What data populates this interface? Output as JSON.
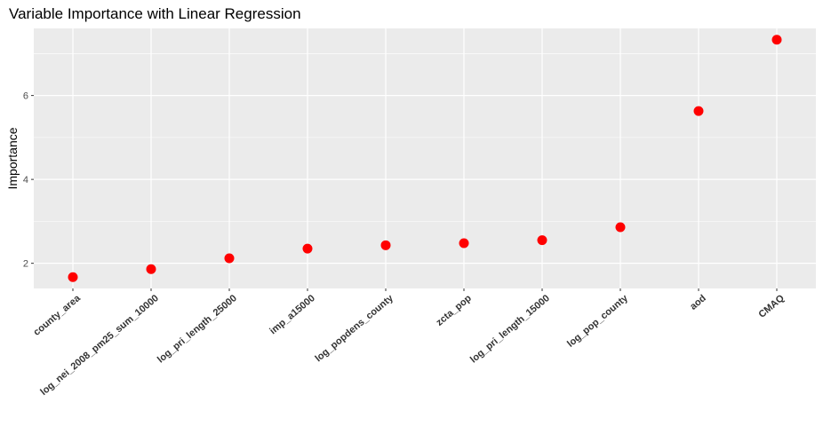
{
  "chart_data": {
    "type": "scatter",
    "title": "Variable Importance with Linear Regression",
    "xlabel": "",
    "ylabel": "Importance",
    "categories": [
      "county_area",
      "log_nei_2008_pm25_sum_10000",
      "log_pri_length_25000",
      "imp_a15000",
      "log_popdens_county",
      "zcta_pop",
      "log_pri_length_15000",
      "log_pop_county",
      "aod",
      "CMAQ"
    ],
    "values": [
      1.67,
      1.86,
      2.12,
      2.35,
      2.43,
      2.48,
      2.55,
      2.86,
      5.63,
      7.33
    ],
    "ylim": [
      1.4,
      7.6
    ],
    "yticks": [
      2,
      4,
      6
    ],
    "grid": true,
    "point_color": "#ff0000",
    "panel_color": "#ebebeb"
  }
}
